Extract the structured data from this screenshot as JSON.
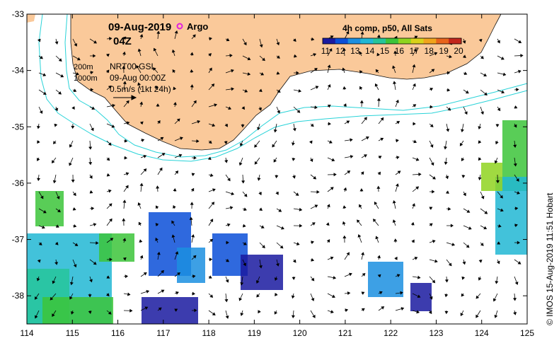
{
  "header": {
    "date": "09-Aug-2019",
    "time": "04Z",
    "argo_label": "Argo"
  },
  "legend": {
    "title": "4h comp, p50, All Sats",
    "colorbar_ticks": [
      "11",
      "12",
      "13",
      "14",
      "15",
      "16",
      "17",
      "18",
      "19",
      "20"
    ],
    "colorbar_colors": [
      "#1a1aa0",
      "#0b4fd8",
      "#1b8fe0",
      "#21b7d4",
      "#26c59a",
      "#3cc43a",
      "#8fd420",
      "#d9d21a",
      "#f0a41c",
      "#e8631c",
      "#c2261c"
    ]
  },
  "info": {
    "depth1": "200m",
    "depth2": "1000m",
    "product": "NRT00 GSL",
    "valid_time": "09-Aug 00:00Z",
    "scale": "0.5m/s (1kt 24h)"
  },
  "axes": {
    "x_ticks": [
      "114",
      "115",
      "116",
      "117",
      "118",
      "119",
      "120",
      "121",
      "122",
      "123",
      "124",
      "125"
    ],
    "y_ticks": [
      "-33",
      "-34",
      "-35",
      "-36",
      "-37",
      "-38"
    ],
    "xlim": [
      114,
      125
    ],
    "ylim": [
      -38.5,
      -33
    ]
  },
  "credit": "© IMOS 15-Aug-2019 11:51 Hobart",
  "colors": {
    "land": "#fac99a",
    "contour": "#29d3d8",
    "frame": "#000000",
    "argo": "#e020e0"
  }
}
